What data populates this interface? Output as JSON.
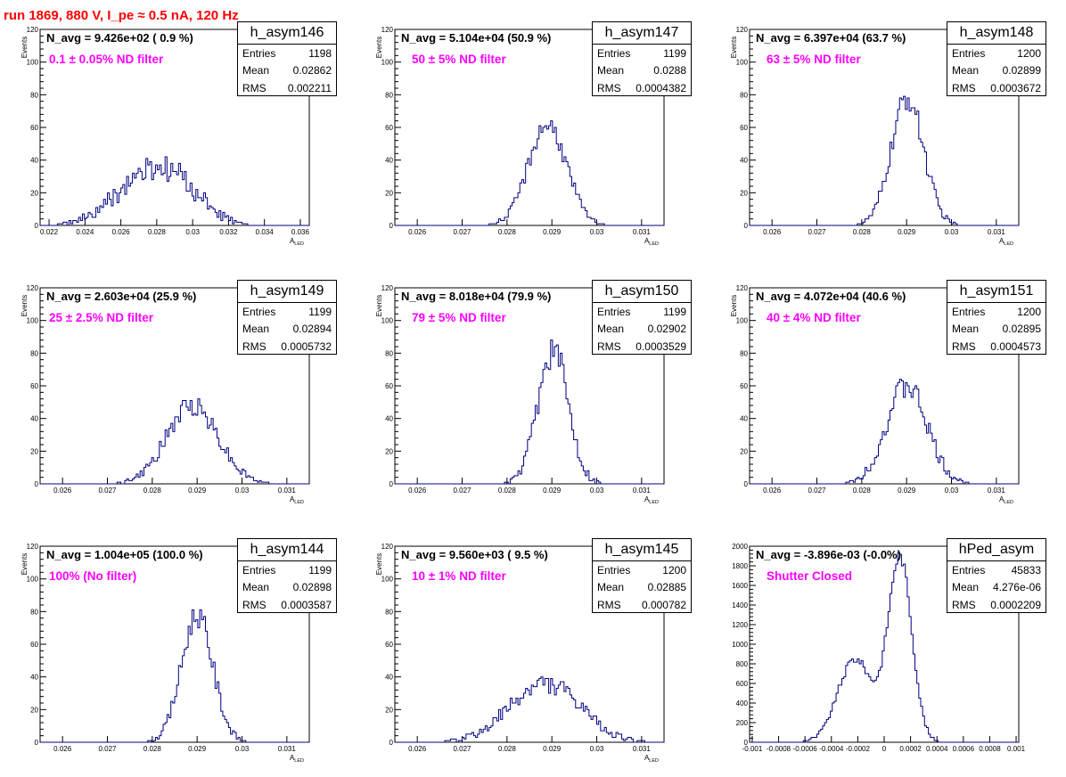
{
  "page": {
    "title": "run 1869,   880 V, I_pe ≈ 0.5 nA, 120 Hz"
  },
  "colors": {
    "title": "#ff0000",
    "histogram": "#000080",
    "filter_label": "#ff00ff"
  },
  "chart_data": [
    {
      "type": "histogram",
      "name": "h_asym146",
      "n_avg": "N_avg = 9.426e+02 ( 0.9 %)",
      "filter": "0.1 ± 0.05% ND filter",
      "stats": {
        "entries_label": "Entries",
        "entries": "1198",
        "mean_label": "Mean",
        "mean": "0.02862",
        "rms_label": "RMS",
        "rms": "0.002211"
      },
      "xlabel": "A",
      "xlabel_sub": "LED",
      "ylabel": "Events",
      "xlim": [
        0.0215,
        0.0365
      ],
      "ylim": [
        0,
        120
      ],
      "xticks": [
        0.022,
        0.024,
        0.026,
        0.028,
        0.03,
        0.032,
        0.034,
        0.036
      ],
      "xtick_labels": [
        "0.022",
        "0.024",
        "0.026",
        "0.028",
        "0.03",
        "0.032",
        "0.034",
        "0.036"
      ],
      "yticks": [
        0,
        20,
        40,
        60,
        80,
        100,
        120
      ],
      "peaks": [
        [
          0.0275,
          0.0018,
          30
        ],
        [
          0.0296,
          0.0013,
          12
        ]
      ],
      "noise": 5,
      "seed": 146
    },
    {
      "type": "histogram",
      "name": "h_asym147",
      "n_avg": "N_avg = 5.104e+04 (50.9 %)",
      "filter": "50 ± 5% ND filter",
      "stats": {
        "entries_label": "Entries",
        "entries": "1199",
        "mean_label": "Mean",
        "mean": "0.0288",
        "rms_label": "RMS",
        "rms": "0.0004382"
      },
      "xlabel": "A",
      "xlabel_sub": "LED",
      "ylabel": "Events",
      "xlim": [
        0.0255,
        0.0315
      ],
      "ylim": [
        0,
        120
      ],
      "xticks": [
        0.026,
        0.027,
        0.028,
        0.029,
        0.03,
        0.031
      ],
      "xtick_labels": [
        "0.026",
        "0.027",
        "0.028",
        "0.029",
        "0.03",
        "0.031"
      ],
      "yticks": [
        0,
        20,
        40,
        60,
        80,
        100,
        120
      ],
      "peaks": [
        [
          0.0289,
          0.00042,
          62
        ]
      ],
      "noise": 4,
      "seed": 147
    },
    {
      "type": "histogram",
      "name": "h_asym148",
      "n_avg": "N_avg = 6.397e+04 (63.7 %)",
      "filter": "63 ± 5% ND filter",
      "stats": {
        "entries_label": "Entries",
        "entries": "1200",
        "mean_label": "Mean",
        "mean": "0.02899",
        "rms_label": "RMS",
        "rms": "0.0003672"
      },
      "xlabel": "A",
      "xlabel_sub": "LED",
      "ylabel": "Events",
      "xlim": [
        0.0255,
        0.0315
      ],
      "ylim": [
        0,
        120
      ],
      "xticks": [
        0.026,
        0.027,
        0.028,
        0.029,
        0.03,
        0.031
      ],
      "xtick_labels": [
        "0.026",
        "0.027",
        "0.028",
        "0.029",
        "0.03",
        "0.031"
      ],
      "yticks": [
        0,
        20,
        40,
        60,
        80,
        100,
        120
      ],
      "peaks": [
        [
          0.02902,
          0.00036,
          78
        ]
      ],
      "noise": 5,
      "seed": 148
    },
    {
      "type": "histogram",
      "name": "h_asym149",
      "n_avg": "N_avg = 2.603e+04 (25.9 %)",
      "filter": "25 ± 2.5% ND filter",
      "stats": {
        "entries_label": "Entries",
        "entries": "1199",
        "mean_label": "Mean",
        "mean": "0.02894",
        "rms_label": "RMS",
        "rms": "0.0005732"
      },
      "xlabel": "A",
      "xlabel_sub": "LED",
      "ylabel": "Events",
      "xlim": [
        0.0255,
        0.0315
      ],
      "ylim": [
        0,
        120
      ],
      "xticks": [
        0.026,
        0.027,
        0.028,
        0.029,
        0.03,
        0.031
      ],
      "xtick_labels": [
        "0.026",
        "0.027",
        "0.028",
        "0.029",
        "0.03",
        "0.031"
      ],
      "yticks": [
        0,
        20,
        40,
        60,
        80,
        100,
        120
      ],
      "peaks": [
        [
          0.0289,
          0.00057,
          48
        ]
      ],
      "noise": 4,
      "seed": 149
    },
    {
      "type": "histogram",
      "name": "h_asym150",
      "n_avg": "N_avg = 8.018e+04 (79.9 %)",
      "filter": "79 ± 5% ND filter",
      "stats": {
        "entries_label": "Entries",
        "entries": "1199",
        "mean_label": "Mean",
        "mean": "0.02902",
        "rms_label": "RMS",
        "rms": "0.0003529"
      },
      "xlabel": "A",
      "xlabel_sub": "LED",
      "ylabel": "Events",
      "xlim": [
        0.0255,
        0.0315
      ],
      "ylim": [
        0,
        120
      ],
      "xticks": [
        0.026,
        0.027,
        0.028,
        0.029,
        0.03,
        0.031
      ],
      "xtick_labels": [
        "0.026",
        "0.027",
        "0.028",
        "0.029",
        "0.03",
        "0.031"
      ],
      "yticks": [
        0,
        20,
        40,
        60,
        80,
        100,
        120
      ],
      "peaks": [
        [
          0.02903,
          0.00034,
          82
        ]
      ],
      "noise": 6,
      "seed": 150
    },
    {
      "type": "histogram",
      "name": "h_asym151",
      "n_avg": "N_avg = 4.072e+04 (40.6 %)",
      "filter": "40 ± 4% ND filter",
      "stats": {
        "entries_label": "Entries",
        "entries": "1200",
        "mean_label": "Mean",
        "mean": "0.02895",
        "rms_label": "RMS",
        "rms": "0.0004573"
      },
      "xlabel": "A",
      "xlabel_sub": "LED",
      "ylabel": "Events",
      "xlim": [
        0.0255,
        0.0315
      ],
      "ylim": [
        0,
        120
      ],
      "xticks": [
        0.026,
        0.027,
        0.028,
        0.029,
        0.03,
        0.031
      ],
      "xtick_labels": [
        "0.026",
        "0.027",
        "0.028",
        "0.029",
        "0.03",
        "0.031"
      ],
      "yticks": [
        0,
        20,
        40,
        60,
        80,
        100,
        120
      ],
      "peaks": [
        [
          0.029,
          0.00045,
          60
        ]
      ],
      "noise": 5,
      "seed": 151
    },
    {
      "type": "histogram",
      "name": "h_asym144",
      "n_avg": "N_avg = 1.004e+05 (100.0 %)",
      "filter": "100% (No filter)",
      "stats": {
        "entries_label": "Entries",
        "entries": "1199",
        "mean_label": "Mean",
        "mean": "0.02898",
        "rms_label": "RMS",
        "rms": "0.0003587"
      },
      "xlabel": "A",
      "xlabel_sub": "LED",
      "ylabel": "Events",
      "xlim": [
        0.0255,
        0.0315
      ],
      "ylim": [
        0,
        120
      ],
      "xticks": [
        0.026,
        0.027,
        0.028,
        0.029,
        0.03,
        0.031
      ],
      "xtick_labels": [
        "0.026",
        "0.027",
        "0.028",
        "0.029",
        "0.03",
        "0.031"
      ],
      "yticks": [
        0,
        20,
        40,
        60,
        80,
        100,
        120
      ],
      "peaks": [
        [
          0.029,
          0.00035,
          78
        ]
      ],
      "noise": 5,
      "seed": 144
    },
    {
      "type": "histogram",
      "name": "h_asym145",
      "n_avg": "N_avg = 9.560e+03 ( 9.5 %)",
      "filter": "10 ± 1% ND filter",
      "stats": {
        "entries_label": "Entries",
        "entries": "1200",
        "mean_label": "Mean",
        "mean": "0.02885",
        "rms_label": "RMS",
        "rms": "0.000782"
      },
      "xlabel": "A",
      "xlabel_sub": "LED",
      "ylabel": "Events",
      "xlim": [
        0.0255,
        0.0315
      ],
      "ylim": [
        0,
        120
      ],
      "xticks": [
        0.026,
        0.027,
        0.028,
        0.029,
        0.03,
        0.031
      ],
      "xtick_labels": [
        "0.026",
        "0.027",
        "0.028",
        "0.029",
        "0.03",
        "0.031"
      ],
      "yticks": [
        0,
        20,
        40,
        60,
        80,
        100,
        120
      ],
      "peaks": [
        [
          0.02885,
          0.00078,
          36
        ]
      ],
      "noise": 4,
      "seed": 145
    },
    {
      "type": "histogram",
      "name": "hPed_asym",
      "n_avg": "N_avg = -3.896e-03 (-0.0%)",
      "filter": "Shutter Closed",
      "stats": {
        "entries_label": "Entries",
        "entries": "45833",
        "mean_label": "Mean",
        "mean": "4.276e-06",
        "rms_label": "RMS",
        "rms": "0.0002209"
      },
      "xlabel": "",
      "xlabel_sub": "",
      "ylabel": "",
      "xlim": [
        -0.00102,
        0.00102
      ],
      "ylim": [
        0,
        2000
      ],
      "xticks": [
        -0.001,
        -0.0008,
        -0.0006,
        -0.0004,
        -0.0002,
        0,
        0.0002,
        0.0004,
        0.0006,
        0.0008,
        0.001
      ],
      "xtick_labels": [
        "-0.001",
        "-0.0008",
        "-0.0006",
        "-0.0004",
        "-0.0002",
        "0",
        "0.0002",
        "0.0004",
        "0.0006",
        "0.0008",
        "0.001"
      ],
      "yticks": [
        0,
        200,
        400,
        600,
        800,
        1000,
        1200,
        1400,
        1600,
        1800,
        2000
      ],
      "peaks": [
        [
          0.00012,
          9e-05,
          1880
        ],
        [
          -0.00022,
          0.00013,
          850
        ]
      ],
      "noise": 40,
      "seed": 9
    }
  ]
}
